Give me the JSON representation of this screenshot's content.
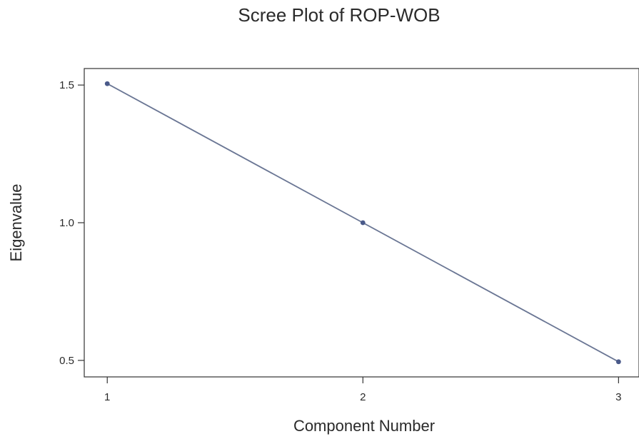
{
  "chart_data": {
    "type": "line",
    "title": "Scree Plot of ROP-WOB",
    "xlabel": "Component Number",
    "ylabel": "Eigenvalue",
    "x": [
      1,
      2,
      3
    ],
    "series": [
      {
        "values": [
          1.505,
          1.0,
          0.495
        ]
      }
    ],
    "xticks": [
      "1",
      "2",
      "3"
    ],
    "yticks": [
      "0.5",
      "1.0",
      "1.5"
    ],
    "xlim": [
      0.91,
      3.08
    ],
    "ylim": [
      0.44,
      1.56
    ],
    "grid": false,
    "legend": "none",
    "colors": {
      "line": "#6a7694",
      "marker": "#4a5a8a",
      "axis": "#333333"
    }
  }
}
